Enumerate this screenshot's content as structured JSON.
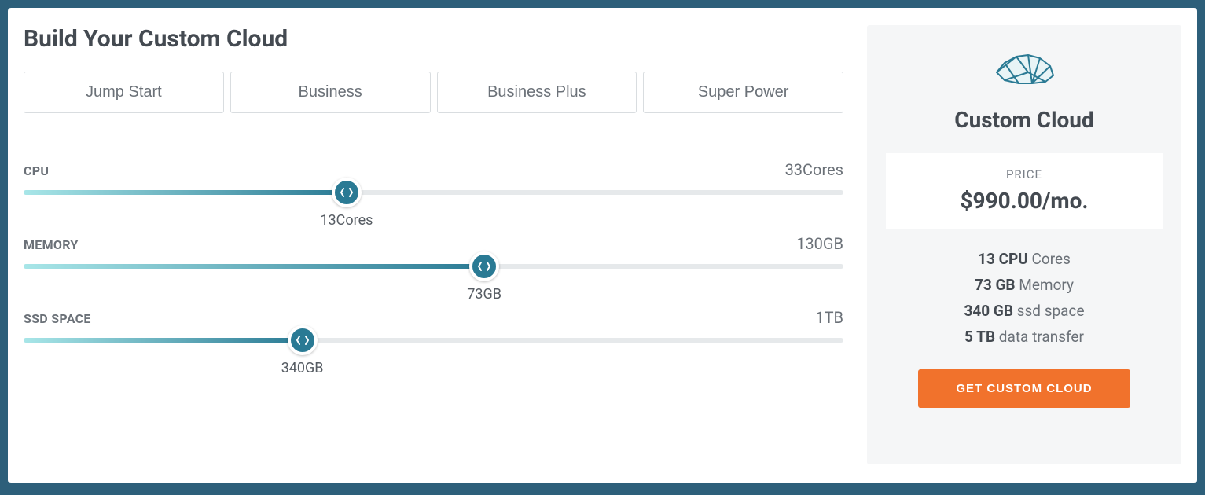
{
  "title": "Build Your Custom Cloud",
  "tabs": [
    {
      "label": "Jump Start"
    },
    {
      "label": "Business"
    },
    {
      "label": "Business Plus"
    },
    {
      "label": "Super Power"
    }
  ],
  "sliders": {
    "cpu": {
      "label": "CPU",
      "max_label": "33Cores",
      "value_label": "13Cores",
      "percent": 39.4
    },
    "memory": {
      "label": "MEMORY",
      "max_label": "130GB",
      "value_label": "73GB",
      "percent": 56.2
    },
    "ssd": {
      "label": "SSD SPACE",
      "max_label": "1TB",
      "value_label": "340GB",
      "percent": 34.0
    }
  },
  "summary": {
    "plan_name": "Custom Cloud",
    "price_label": "PRICE",
    "price_value": "$990.00/mo.",
    "specs": {
      "cpu": {
        "bold": "13 CPU",
        "rest": " Cores"
      },
      "memory": {
        "bold": "73 GB",
        "rest": " Memory"
      },
      "ssd": {
        "bold": "340 GB",
        "rest": " ssd space"
      },
      "transfer": {
        "bold": "5 TB",
        "rest": " data transfer"
      }
    },
    "cta_label": "GET CUSTOM CLOUD"
  },
  "colors": {
    "accent": "#2a7a94",
    "cta_bg": "#f1722c",
    "track": "#e6e9eb",
    "fill_start": "#a8e6e8",
    "fill_end": "#2a7a94",
    "panel_bg": "#f5f6f7"
  }
}
